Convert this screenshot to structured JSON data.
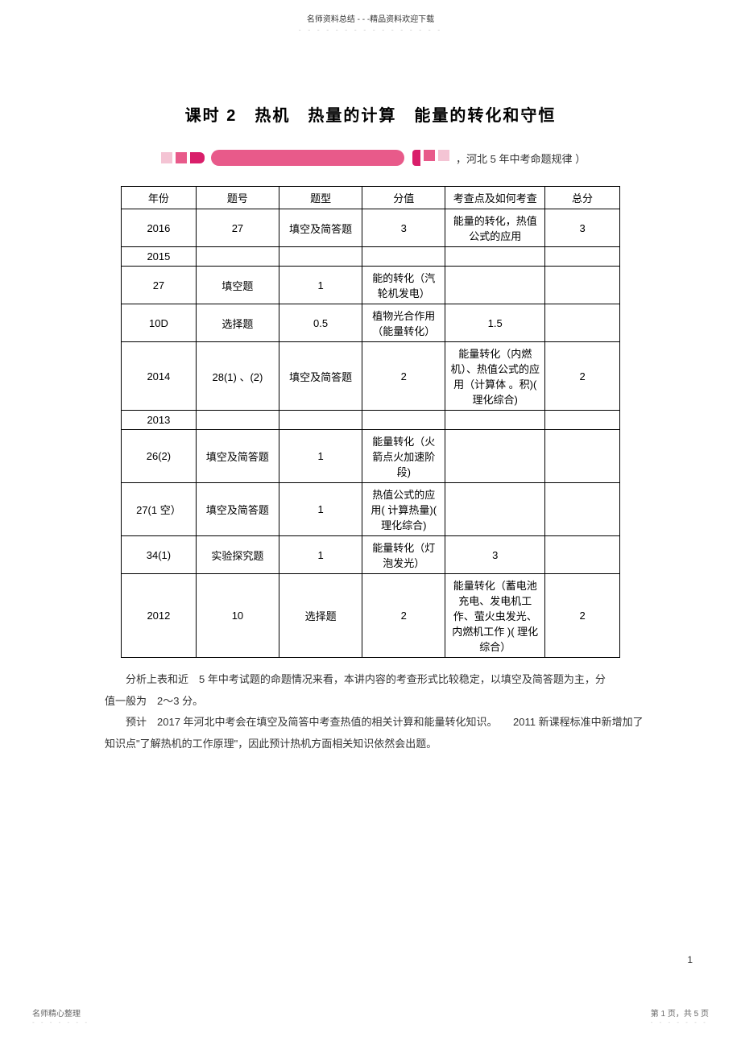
{
  "header": {
    "top_text": "名师资料总结 - - -精品资料欢迎下载",
    "dots": "- - - - - - - - - - - - - - - -"
  },
  "title": "课时 2　热机　热量的计算　能量的转化和守恒",
  "banner": {
    "text": "，河北 5 年中考命题规律 ）"
  },
  "table": {
    "headers": {
      "year": "年份",
      "num": "题号",
      "type": "题型",
      "score": "分值",
      "point": "考查点及如何考查",
      "total": "总分"
    },
    "rows": [
      {
        "year": "2016",
        "num": "27",
        "type": "填空及简答题",
        "score": "3",
        "point": "能量的转化，热值公式的应用",
        "total": "3"
      },
      {
        "year": "2015",
        "num": "",
        "type": "",
        "score": "",
        "point": "",
        "total": ""
      },
      {
        "year": "27",
        "num": "填空题",
        "type": "1",
        "score": "能的转化（汽轮机发电）",
        "point": "",
        "total": ""
      },
      {
        "year": "10D",
        "num": "选择题",
        "type": "0.5",
        "score": "植物光合作用（能量转化）",
        "point": "1.5",
        "total": ""
      },
      {
        "year": "2014",
        "num": "28(1) 、(2)",
        "type": "填空及简答题",
        "score": "2",
        "point": "能量转化（内燃机）、热值公式的应用（计算体 。积)( 理化综合)",
        "total": "2"
      },
      {
        "year": "2013",
        "num": "",
        "type": "",
        "score": "",
        "point": "",
        "total": ""
      },
      {
        "year": "26(2)",
        "num": "填空及简答题",
        "type": "1",
        "score": "能量转化（火箭点火加速阶段)",
        "point": "",
        "total": ""
      },
      {
        "year": "27(1 空）",
        "num": "填空及简答题",
        "type": "1",
        "score": "热值公式的应用( 计算热量)( 理化综合)",
        "point": "",
        "total": ""
      },
      {
        "year": "34(1)",
        "num": "实验探究题",
        "type": "1",
        "score": "能量转化（灯泡发光）",
        "point": "3",
        "total": ""
      },
      {
        "year": "2012",
        "num": "10",
        "type": "选择题",
        "score": "2",
        "point": "能量转化（蓄电池充电、发电机工作、萤火虫发光、内燃机工作 )( 理化综合）",
        "total": "2"
      }
    ]
  },
  "analysis": {
    "p1_a": "分析上表和近　5 年中考试题的命题情况来看，本讲内容的考查形式比较稳定，以填空及简答题为主，分",
    "p1_b": "值一般为　2～3 分。",
    "p2_a": "预计　2017 年河北中考会在填空及简答中考查热值的相关计算和能量转化知识。　　2011 新课程标准中新增加了",
    "p2_b": "知识点\"了解热机的工作原理\"，因此预计热机方面相关知识依然会出题。"
  },
  "page_num": "1",
  "footer": {
    "left": "名师精心整理",
    "left_dots": "- - - - - - -",
    "right": "第 1 页，共 5 页",
    "right_dots": "- - - - - - -"
  }
}
